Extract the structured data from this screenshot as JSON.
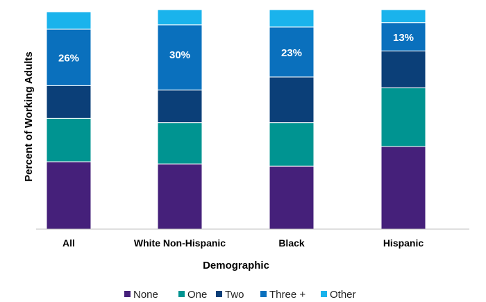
{
  "chart_data": {
    "type": "bar",
    "stacked": true,
    "xlabel": "Demographic",
    "ylabel": "Percent of Working Adults",
    "ylim": [
      0,
      100
    ],
    "categories": [
      "All",
      "White Non-Hispanic",
      "Black",
      "Hispanic"
    ],
    "series": [
      {
        "name": "None",
        "color": "#45207a",
        "values": [
          31,
          30,
          29,
          38
        ]
      },
      {
        "name": "One",
        "color": "#009491",
        "values": [
          20,
          19,
          20,
          27
        ]
      },
      {
        "name": "Two",
        "color": "#0b3f78",
        "values": [
          15,
          15,
          21,
          17
        ]
      },
      {
        "name": "Three +",
        "color": "#0a70bd",
        "values": [
          26,
          30,
          23,
          13
        ]
      },
      {
        "name": "Other",
        "color": "#1ab3ec",
        "values": [
          8,
          7,
          8,
          6
        ]
      }
    ],
    "data_labels": [
      {
        "category": "All",
        "series": "Three +",
        "text": "26%"
      },
      {
        "category": "White Non-Hispanic",
        "series": "Three +",
        "text": "30%"
      },
      {
        "category": "Black",
        "series": "Three +",
        "text": "23%"
      },
      {
        "category": "Hispanic",
        "series": "Three +",
        "text": "13%"
      }
    ],
    "grid": false,
    "legend": "bottom"
  }
}
